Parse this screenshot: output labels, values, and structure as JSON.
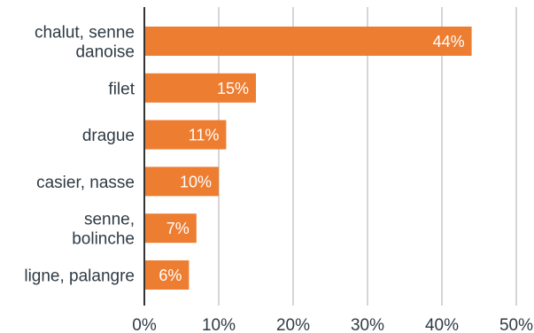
{
  "chart_data": {
    "type": "bar",
    "orientation": "horizontal",
    "categories": [
      [
        "chalut, senne",
        "danoise"
      ],
      [
        "filet"
      ],
      [
        "drague"
      ],
      [
        "casier, nasse"
      ],
      [
        "senne,",
        "bolinche"
      ],
      [
        "ligne, palangre"
      ]
    ],
    "values": [
      44,
      15,
      11,
      10,
      7,
      6
    ],
    "data_labels": [
      "44%",
      "15%",
      "11%",
      "10%",
      "7%",
      "6%"
    ],
    "xlim": [
      0,
      50
    ],
    "xticks": [
      0,
      10,
      20,
      30,
      40,
      50
    ],
    "xtick_labels": [
      "0%",
      "10%",
      "20%",
      "30%",
      "40%",
      "50%"
    ],
    "grid": "vertical",
    "bar_color": "#ed7d31",
    "title": "",
    "xlabel": "",
    "ylabel": ""
  }
}
